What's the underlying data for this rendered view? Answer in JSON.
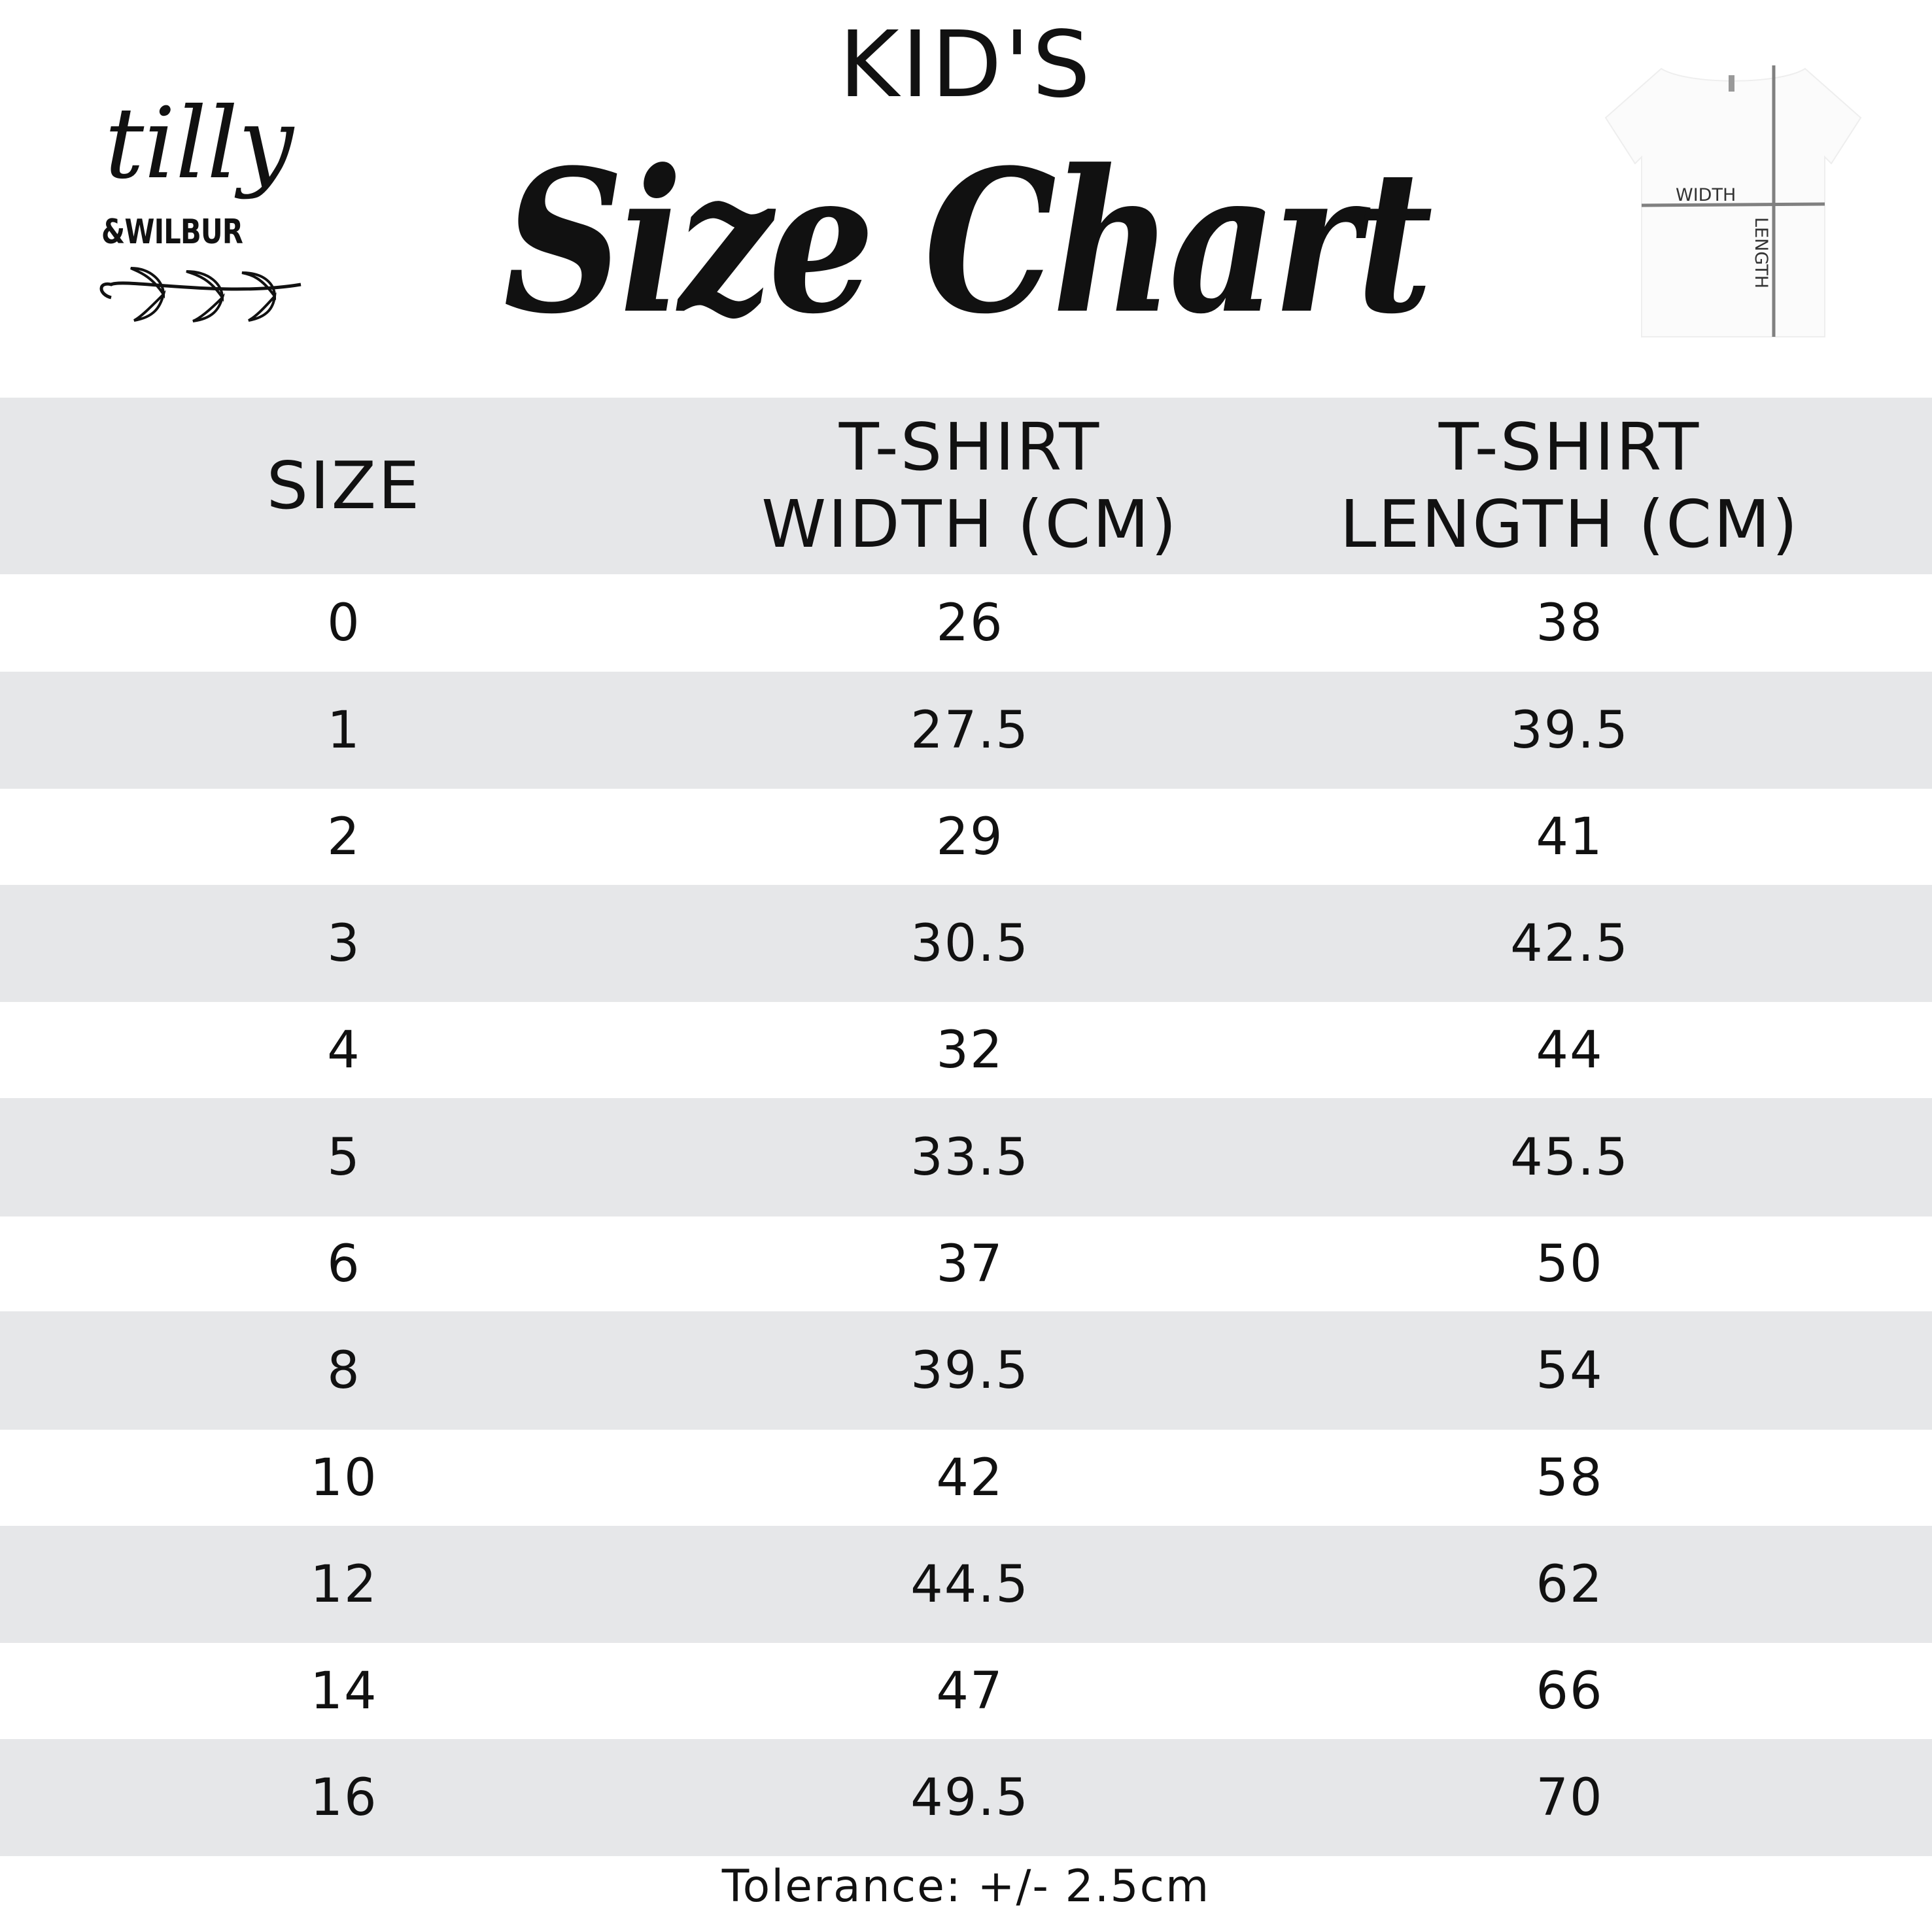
{
  "brand": {
    "logo_text": "tilly & WILBUR"
  },
  "title": {
    "kicker": "KID'S",
    "main": "Size Chart"
  },
  "diagram": {
    "width_label": "WIDTH",
    "length_label": "LENGTH"
  },
  "table": {
    "headers": {
      "size": "SIZE",
      "width_line1": "T-SHIRT",
      "width_line2": "WIDTH (CM)",
      "length_line1": "T-SHIRT",
      "length_line2": "LENGTH (CM)"
    },
    "rows": [
      {
        "size": "0",
        "width": "26",
        "length": "38"
      },
      {
        "size": "1",
        "width": "27.5",
        "length": "39.5"
      },
      {
        "size": "2",
        "width": "29",
        "length": "41"
      },
      {
        "size": "3",
        "width": "30.5",
        "length": "42.5"
      },
      {
        "size": "4",
        "width": "32",
        "length": "44"
      },
      {
        "size": "5",
        "width": "33.5",
        "length": "45.5"
      },
      {
        "size": "6",
        "width": "37",
        "length": "50"
      },
      {
        "size": "8",
        "width": "39.5",
        "length": "54"
      },
      {
        "size": "10",
        "width": "42",
        "length": "58"
      },
      {
        "size": "12",
        "width": "44.5",
        "length": "62"
      },
      {
        "size": "14",
        "width": "47",
        "length": "66"
      },
      {
        "size": "16",
        "width": "49.5",
        "length": "70"
      }
    ]
  },
  "footer": {
    "tolerance": "Tolerance: +/- 2.5cm"
  },
  "colors": {
    "stripe": "#e6e7e9",
    "text": "#111111",
    "measure_line": "#808080"
  }
}
